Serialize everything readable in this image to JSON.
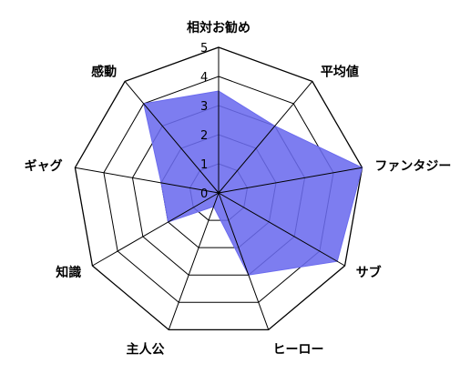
{
  "chart_data": {
    "type": "radar",
    "title": "",
    "categories": [
      "相対お勧め",
      "平均値",
      "ファンタジー",
      "サブ",
      "ヒーロー",
      "主人公",
      "知識",
      "ギャグ",
      "感動"
    ],
    "rlim": [
      0,
      5
    ],
    "ticks": [
      "0",
      "1",
      "2",
      "3",
      "4",
      "5"
    ],
    "grid": true,
    "legend": "none",
    "series": [
      {
        "values": [
          3.5,
          3.0,
          5.0,
          4.7,
          3.0,
          0.5,
          2.0,
          2.0,
          4.0
        ]
      }
    ],
    "colors": {
      "fill": "#6b6bee",
      "grid": "#000000"
    }
  }
}
